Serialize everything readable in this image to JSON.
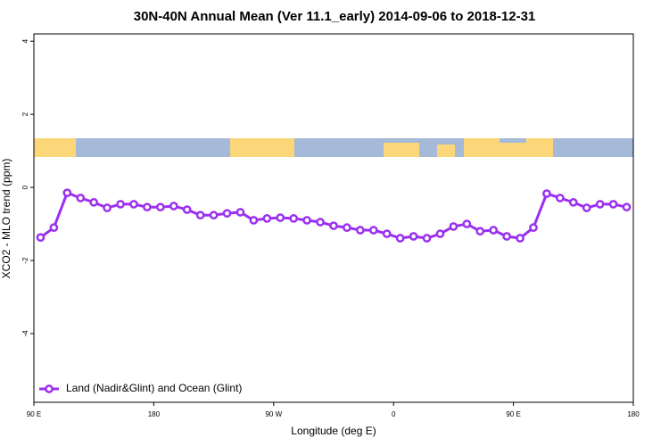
{
  "chart_data": {
    "type": "line",
    "title": "30N-40N Annual Mean (Ver 11.1_early)   2014-09-06 to 2018-12-31",
    "x_label": "Longitude (deg E)",
    "y_label": "XCO2 - MLO trend (ppm)",
    "x": [
      95,
      105,
      115,
      125,
      135,
      145,
      155,
      165,
      175,
      185,
      195,
      205,
      215,
      225,
      235,
      245,
      255,
      265,
      275,
      285,
      295,
      305,
      315,
      325,
      335,
      345,
      355,
      365,
      375,
      385,
      395,
      405,
      415,
      425,
      435,
      445,
      455,
      465,
      475,
      485,
      495,
      505,
      515,
      525,
      535
    ],
    "series": [
      {
        "name": "Land (Nadir&Glint) and Ocean (Glint)",
        "color": "#9b30f0",
        "values": [
          -1.37,
          -1.1,
          -0.15,
          -0.29,
          -0.41,
          -0.56,
          -0.46,
          -0.46,
          -0.54,
          -0.54,
          -0.51,
          -0.61,
          -0.76,
          -0.76,
          -0.71,
          -0.68,
          -0.9,
          -0.85,
          -0.83,
          -0.85,
          -0.9,
          -0.95,
          -1.05,
          -1.1,
          -1.17,
          -1.17,
          -1.27,
          -1.39,
          -1.34,
          -1.39,
          -1.27,
          -1.07,
          -1.0,
          -1.2,
          -1.17,
          -1.34,
          -1.39,
          -1.1,
          -0.17,
          -0.29,
          -0.41,
          -0.56,
          -0.46,
          -0.46,
          -0.54
        ]
      }
    ],
    "xlim": [
      90,
      540
    ],
    "xticks": [
      {
        "value": 90,
        "label": "90 E"
      },
      180,
      {
        "value": 270,
        "label": "90 W"
      },
      {
        "value": 360,
        "label": "0"
      },
      {
        "value": 450,
        "label": "90 E"
      },
      {
        "value": 540,
        "label": "180"
      }
    ],
    "ylim": [
      -5.88,
      4.2
    ],
    "yticks": [
      4,
      2,
      0,
      -2,
      -4
    ],
    "legend": "bottom-left"
  }
}
